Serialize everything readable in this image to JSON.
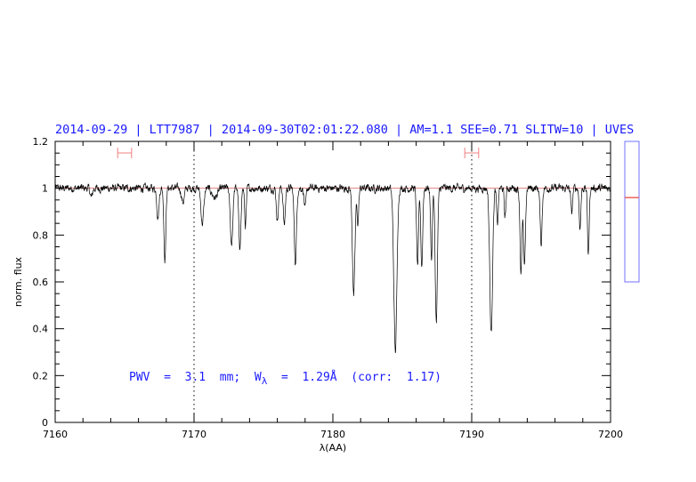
{
  "chart_data": {
    "type": "line",
    "title": "2014-09-29 | LTT7987 | 2014-09-30T02:01:22.080 | AM=1.1  SEE=0.71  SLITW=10 | UVES",
    "xlabel": "λ(AA)",
    "ylabel": "norm. flux",
    "xlim": [
      7160,
      7200
    ],
    "ylim": [
      0,
      1.2
    ],
    "xticks": [
      "7160",
      "7170",
      "7180",
      "7190",
      "7200"
    ],
    "xtick_values": [
      7160,
      7170,
      7180,
      7190,
      7200
    ],
    "yticks": [
      "0",
      "0.2",
      "0.4",
      "0.6",
      "0.8",
      "1",
      "1.2"
    ],
    "ytick_values": [
      0,
      0.2,
      0.4,
      0.6,
      0.8,
      1.0,
      1.2
    ],
    "reference_line": 1.0,
    "vertical_dotted_lines": [
      7170,
      7190
    ],
    "integration_ranges": [
      [
        7164.5,
        7165.5
      ],
      [
        7189.5,
        7190.5
      ]
    ],
    "annotation": {
      "prefix": "PWV  =  3.1  mm;  W",
      "subscript": "λ",
      "suffix": "  =  1.29Å  (corr:  1.17)"
    },
    "spectrum_continuum": 1.0,
    "spectrum_noise": 0.008,
    "absorption_lines": [
      {
        "wavelength": 7162.6,
        "depth": 0.04,
        "width": 0.08
      },
      {
        "wavelength": 7167.4,
        "depth": 0.12,
        "width": 0.08
      },
      {
        "wavelength": 7167.9,
        "depth": 0.3,
        "width": 0.07
      },
      {
        "wavelength": 7169.2,
        "depth": 0.06,
        "width": 0.1
      },
      {
        "wavelength": 7170.6,
        "depth": 0.15,
        "width": 0.1
      },
      {
        "wavelength": 7171.5,
        "depth": 0.04,
        "width": 0.2
      },
      {
        "wavelength": 7172.7,
        "depth": 0.24,
        "width": 0.09
      },
      {
        "wavelength": 7173.3,
        "depth": 0.28,
        "width": 0.07
      },
      {
        "wavelength": 7173.7,
        "depth": 0.16,
        "width": 0.06
      },
      {
        "wavelength": 7176.0,
        "depth": 0.14,
        "width": 0.07
      },
      {
        "wavelength": 7176.5,
        "depth": 0.16,
        "width": 0.07
      },
      {
        "wavelength": 7177.3,
        "depth": 0.32,
        "width": 0.08
      },
      {
        "wavelength": 7178.0,
        "depth": 0.09,
        "width": 0.07
      },
      {
        "wavelength": 7181.5,
        "depth": 0.46,
        "width": 0.09
      },
      {
        "wavelength": 7181.8,
        "depth": 0.15,
        "width": 0.06
      },
      {
        "wavelength": 7184.5,
        "depth": 0.7,
        "width": 0.11
      },
      {
        "wavelength": 7186.1,
        "depth": 0.33,
        "width": 0.07
      },
      {
        "wavelength": 7186.4,
        "depth": 0.33,
        "width": 0.07
      },
      {
        "wavelength": 7187.1,
        "depth": 0.3,
        "width": 0.06
      },
      {
        "wavelength": 7187.45,
        "depth": 0.57,
        "width": 0.08
      },
      {
        "wavelength": 7191.4,
        "depth": 0.62,
        "width": 0.1
      },
      {
        "wavelength": 7191.85,
        "depth": 0.16,
        "width": 0.06
      },
      {
        "wavelength": 7192.4,
        "depth": 0.12,
        "width": 0.06
      },
      {
        "wavelength": 7193.55,
        "depth": 0.36,
        "width": 0.07
      },
      {
        "wavelength": 7193.8,
        "depth": 0.34,
        "width": 0.07
      },
      {
        "wavelength": 7195.0,
        "depth": 0.24,
        "width": 0.07
      },
      {
        "wavelength": 7197.2,
        "depth": 0.11,
        "width": 0.06
      },
      {
        "wavelength": 7197.8,
        "depth": 0.17,
        "width": 0.06
      },
      {
        "wavelength": 7198.4,
        "depth": 0.28,
        "width": 0.06
      }
    ],
    "side_indicator": {
      "range": [
        0.6,
        1.2
      ],
      "marker": 0.96
    }
  }
}
